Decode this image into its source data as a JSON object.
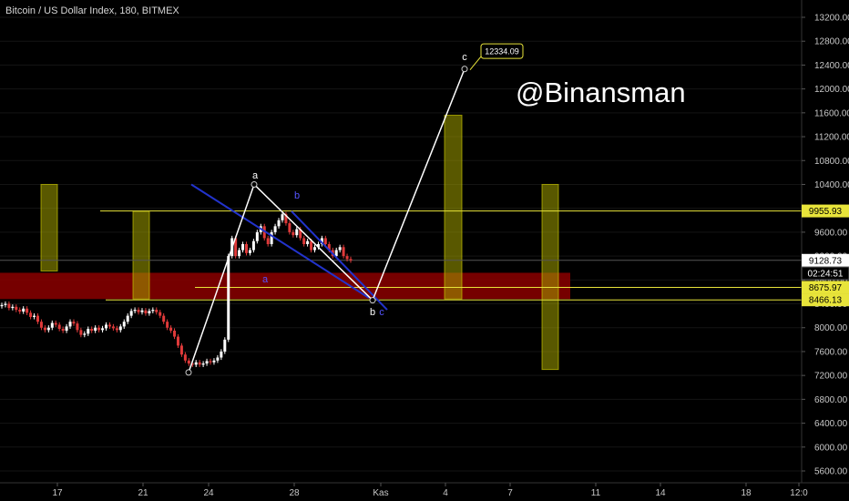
{
  "header": {
    "title": "Bitcoin / US Dollar Index, 180, BITMEX"
  },
  "watermark": {
    "text": "@Binansman"
  },
  "chart_data": {
    "type": "candlestick",
    "y_ticks": [
      5600,
      6000,
      6400,
      6800,
      7200,
      7600,
      8000,
      8400,
      8800,
      9200,
      9600,
      10000,
      10400,
      10800,
      11200,
      11600,
      12000,
      12400,
      12800,
      13200
    ],
    "y_tick_labels": [
      "5600.00",
      "6000.00",
      "6400.00",
      "6800.00",
      "7200.00",
      "7600.00",
      "8000.00",
      "8400.00",
      "8800.00",
      "9200.00",
      "9600.00",
      "10000.00",
      "10400.00",
      "10800.00",
      "11200.00",
      "11600.00",
      "12000.00",
      "12400.00",
      "12800.00",
      "13200.00"
    ],
    "x_ticks": [
      "17",
      "21",
      "24",
      "28",
      "Kas",
      "4",
      "7",
      "11",
      "14",
      "18",
      "12:0"
    ],
    "price_tags": [
      {
        "label": "9955.93",
        "value": 9955.93,
        "style": "yellow"
      },
      {
        "label": "9128.73",
        "value": 9128.73,
        "style": "white"
      },
      {
        "label": "02:24:51",
        "value": 9000,
        "style": "dark"
      },
      {
        "label": "8675.97",
        "value": 8675.97,
        "style": "yellow"
      },
      {
        "label": "8466.13",
        "value": 8466.13,
        "style": "yellow"
      }
    ],
    "horizontal_levels": [
      9955.93,
      9128.73,
      8675.97,
      8466.13
    ],
    "support_zone": [
      8480,
      8920
    ],
    "wave_labels": [
      {
        "text": "a",
        "value": 10500,
        "color": "#ffffff"
      },
      {
        "text": "b",
        "value": 10160,
        "color": "#5555ff"
      },
      {
        "text": "a",
        "value": 8760,
        "color": "#5555ff"
      },
      {
        "text": "b",
        "value": 8210,
        "color": "#ffffff"
      },
      {
        "text": "c",
        "value": 8210,
        "color": "#5555ff"
      },
      {
        "text": "c",
        "value": 12480,
        "color": "#ffffff"
      }
    ],
    "target_label": {
      "text": "12334.09",
      "value": 12334.09
    },
    "zigzag_points": [
      7250,
      10400,
      8460,
      12334.09
    ],
    "channel_lines": [
      [
        10400,
        8500
      ],
      [
        9950,
        8300
      ]
    ],
    "yellow_boxes": [
      [
        8950,
        10400
      ],
      [
        8480,
        9950
      ],
      [
        8480,
        11560
      ],
      [
        7300,
        10400
      ]
    ],
    "candle_series": [
      8380,
      8400,
      8330,
      8350,
      8300,
      8270,
      8320,
      8250,
      8180,
      8200,
      8100,
      8000,
      7960,
      8000,
      8080,
      8050,
      7980,
      7950,
      8020,
      8100,
      8070,
      7960,
      7880,
      7900,
      7980,
      7950,
      8000,
      7960,
      7990,
      8050,
      8020,
      7990,
      7960,
      8020,
      8100,
      8200,
      8280,
      8300,
      8260,
      8290,
      8240,
      8280,
      8300,
      8260,
      8200,
      8100,
      8000,
      7950,
      7850,
      7700,
      7550,
      7450,
      7400,
      7380,
      7420,
      7380,
      7400,
      7440,
      7420,
      7450,
      7500,
      7600,
      7800,
      9200,
      9500,
      9200,
      9300,
      9400,
      9250,
      9300,
      9450,
      9600,
      9700,
      9500,
      9400,
      9600,
      9700,
      9800,
      9900,
      9750,
      9600,
      9550,
      9650,
      9500,
      9400,
      9450,
      9300,
      9350,
      9400,
      9500,
      9400,
      9300,
      9200,
      9300,
      9350,
      9200,
      9150,
      9128
    ]
  }
}
